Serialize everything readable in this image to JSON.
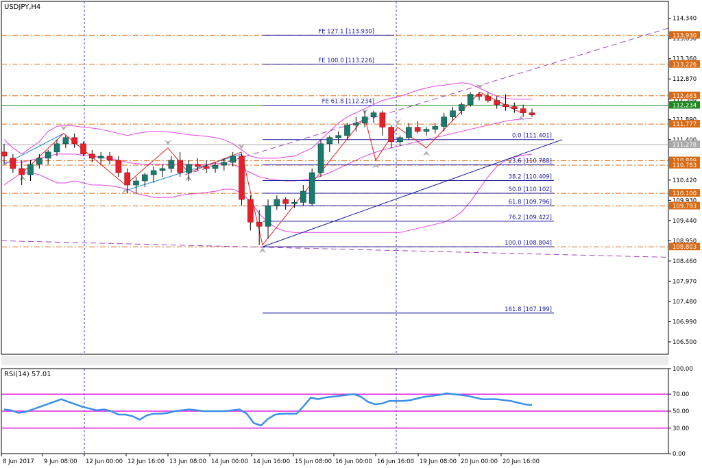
{
  "chart_data": [
    {
      "type": "candlestick",
      "title": "USDJPY,H4",
      "symbol": "USDJPY",
      "timeframe": "H4",
      "ylim": [
        106.2,
        114.75
      ],
      "y_ticks": [
        "114.340",
        "113.850",
        "113.360",
        "112.870",
        "112.380",
        "111.890",
        "111.400",
        "110.910",
        "110.420",
        "109.930",
        "109.440",
        "108.950",
        "108.460",
        "107.970",
        "107.480",
        "106.990",
        "106.500"
      ],
      "x_ticks": [
        "8 Jun 2017",
        "9 Jun 08:00",
        "12 Jun 00:00",
        "12 Jun 16:00",
        "13 Jun 08:00",
        "14 Jun 00:00",
        "14 Jun 16:00",
        "15 Jun 08:00",
        "16 Jun 00:00",
        "16 Jun 16:00",
        "19 Jun 08:00",
        "20 Jun 00:00",
        "20 Jun 16:00"
      ],
      "candles": [
        {
          "o": 111.1,
          "h": 111.3,
          "l": 110.8,
          "c": 111.0
        },
        {
          "o": 110.95,
          "h": 111.05,
          "l": 110.6,
          "c": 110.7
        },
        {
          "o": 110.7,
          "h": 110.9,
          "l": 110.3,
          "c": 110.55
        },
        {
          "o": 110.55,
          "h": 110.9,
          "l": 110.4,
          "c": 110.8
        },
        {
          "o": 110.8,
          "h": 111.05,
          "l": 110.7,
          "c": 110.95
        },
        {
          "o": 110.95,
          "h": 111.15,
          "l": 110.8,
          "c": 111.1
        },
        {
          "o": 111.1,
          "h": 111.4,
          "l": 111.0,
          "c": 111.3
        },
        {
          "o": 111.3,
          "h": 111.5,
          "l": 111.2,
          "c": 111.45
        },
        {
          "o": 111.45,
          "h": 111.55,
          "l": 111.2,
          "c": 111.3
        },
        {
          "o": 111.3,
          "h": 111.35,
          "l": 111.0,
          "c": 111.05
        },
        {
          "o": 111.05,
          "h": 111.15,
          "l": 110.85,
          "c": 110.95
        },
        {
          "o": 110.95,
          "h": 111.1,
          "l": 110.8,
          "c": 111.0
        },
        {
          "o": 111.0,
          "h": 111.1,
          "l": 110.8,
          "c": 110.9
        },
        {
          "o": 110.9,
          "h": 111.0,
          "l": 110.5,
          "c": 110.6
        },
        {
          "o": 110.6,
          "h": 110.7,
          "l": 110.1,
          "c": 110.3
        },
        {
          "o": 110.3,
          "h": 110.5,
          "l": 110.1,
          "c": 110.4
        },
        {
          "o": 110.4,
          "h": 110.6,
          "l": 110.25,
          "c": 110.55
        },
        {
          "o": 110.55,
          "h": 110.75,
          "l": 110.35,
          "c": 110.65
        },
        {
          "o": 110.65,
          "h": 110.8,
          "l": 110.5,
          "c": 110.7
        },
        {
          "o": 110.7,
          "h": 111.0,
          "l": 110.6,
          "c": 110.9
        },
        {
          "o": 110.9,
          "h": 111.1,
          "l": 110.5,
          "c": 110.6
        },
        {
          "o": 110.6,
          "h": 110.9,
          "l": 110.4,
          "c": 110.8
        },
        {
          "o": 110.8,
          "h": 110.95,
          "l": 110.65,
          "c": 110.75
        },
        {
          "o": 110.75,
          "h": 110.9,
          "l": 110.6,
          "c": 110.7
        },
        {
          "o": 110.7,
          "h": 110.85,
          "l": 110.6,
          "c": 110.78
        },
        {
          "o": 110.78,
          "h": 110.95,
          "l": 110.65,
          "c": 110.85
        },
        {
          "o": 110.85,
          "h": 111.1,
          "l": 110.75,
          "c": 111.0
        },
        {
          "o": 111.0,
          "h": 111.05,
          "l": 109.8,
          "c": 109.95
        },
        {
          "o": 109.95,
          "h": 110.05,
          "l": 109.2,
          "c": 109.4
        },
        {
          "o": 109.4,
          "h": 109.7,
          "l": 108.85,
          "c": 109.3
        },
        {
          "o": 109.3,
          "h": 109.95,
          "l": 109.0,
          "c": 109.8
        },
        {
          "o": 109.8,
          "h": 110.05,
          "l": 109.7,
          "c": 109.95
        },
        {
          "o": 109.95,
          "h": 110.0,
          "l": 109.7,
          "c": 109.85
        },
        {
          "o": 109.85,
          "h": 109.95,
          "l": 109.75,
          "c": 109.88
        },
        {
          "o": 109.88,
          "h": 110.3,
          "l": 109.8,
          "c": 110.15
        },
        {
          "o": 109.85,
          "h": 110.7,
          "l": 109.8,
          "c": 110.6
        },
        {
          "o": 110.6,
          "h": 111.4,
          "l": 110.5,
          "c": 111.3
        },
        {
          "o": 111.3,
          "h": 111.5,
          "l": 111.1,
          "c": 111.45
        },
        {
          "o": 111.45,
          "h": 111.6,
          "l": 111.3,
          "c": 111.5
        },
        {
          "o": 111.5,
          "h": 111.8,
          "l": 111.4,
          "c": 111.75
        },
        {
          "o": 111.75,
          "h": 111.95,
          "l": 111.6,
          "c": 111.8
        },
        {
          "o": 111.8,
          "h": 112.1,
          "l": 111.7,
          "c": 111.95
        },
        {
          "o": 111.95,
          "h": 112.1,
          "l": 111.8,
          "c": 112.05
        },
        {
          "o": 112.05,
          "h": 112.1,
          "l": 111.5,
          "c": 111.7
        },
        {
          "o": 111.7,
          "h": 111.75,
          "l": 111.2,
          "c": 111.35
        },
        {
          "o": 111.35,
          "h": 111.5,
          "l": 111.25,
          "c": 111.45
        },
        {
          "o": 111.45,
          "h": 111.8,
          "l": 111.4,
          "c": 111.7
        },
        {
          "o": 111.7,
          "h": 111.85,
          "l": 111.55,
          "c": 111.6
        },
        {
          "o": 111.6,
          "h": 111.7,
          "l": 111.5,
          "c": 111.65
        },
        {
          "o": 111.65,
          "h": 111.8,
          "l": 111.55,
          "c": 111.72
        },
        {
          "o": 111.72,
          "h": 112.05,
          "l": 111.6,
          "c": 111.95
        },
        {
          "o": 111.95,
          "h": 112.2,
          "l": 111.85,
          "c": 112.1
        },
        {
          "o": 112.1,
          "h": 112.3,
          "l": 112.0,
          "c": 112.25
        },
        {
          "o": 112.25,
          "h": 112.55,
          "l": 112.2,
          "c": 112.5
        },
        {
          "o": 112.5,
          "h": 112.55,
          "l": 112.35,
          "c": 112.45
        },
        {
          "o": 112.45,
          "h": 112.55,
          "l": 112.3,
          "c": 112.35
        },
        {
          "o": 112.35,
          "h": 112.45,
          "l": 112.15,
          "c": 112.25
        },
        {
          "o": 112.25,
          "h": 112.5,
          "l": 112.1,
          "c": 112.2
        },
        {
          "o": 112.2,
          "h": 112.3,
          "l": 112.05,
          "c": 112.15
        },
        {
          "o": 112.15,
          "h": 112.25,
          "l": 111.95,
          "c": 112.05
        },
        {
          "o": 112.05,
          "h": 112.15,
          "l": 111.95,
          "c": 112.0
        }
      ],
      "fibo_levels": [
        {
          "label": "0.0 [111.401]",
          "price": 111.401
        },
        {
          "label": "23.6 [110.788]",
          "price": 110.788
        },
        {
          "label": "38.2 [110.409]",
          "price": 110.409
        },
        {
          "label": "50.0 [110.102]",
          "price": 110.102
        },
        {
          "label": "61.8 [109.796]",
          "price": 109.796
        },
        {
          "label": "76.2 [109.422]",
          "price": 109.422
        },
        {
          "label": "100.0 [108.804]",
          "price": 108.804
        },
        {
          "label": "161.8 [107.199]",
          "price": 107.199
        }
      ],
      "fibo_expansion": [
        {
          "label": "FE 127.1 [113.930]",
          "price": 113.93
        },
        {
          "label": "FE 100.0 [113.226]",
          "price": 113.226
        },
        {
          "label": "FE 61.8 [112.234]",
          "price": 112.234
        }
      ],
      "price_labels": [
        {
          "text": "113.930",
          "price": 113.93,
          "color": "#d96a12"
        },
        {
          "text": "113.226",
          "price": 113.226,
          "color": "#d96a12"
        },
        {
          "text": "112.463",
          "price": 112.463,
          "color": "#d96a12"
        },
        {
          "text": "112.234",
          "price": 112.234,
          "color": "#1e8a1e"
        },
        {
          "text": "111.777",
          "price": 111.777,
          "color": "#d96a12"
        },
        {
          "text": "111.278",
          "price": 111.278,
          "color": "#a9a9a9"
        },
        {
          "text": "110.889",
          "price": 110.889,
          "color": "#d96a12"
        },
        {
          "text": "110.783",
          "price": 110.783,
          "color": "#d96a12"
        },
        {
          "text": "110.100",
          "price": 110.1,
          "color": "#d96a12"
        },
        {
          "text": "109.793",
          "price": 109.793,
          "color": "#d96a12"
        },
        {
          "text": "108.803",
          "price": 108.803,
          "color": "#d96a12"
        }
      ],
      "bollinger": {
        "upper": [
          111.4,
          111.2,
          111.05,
          111.2,
          111.35,
          111.6,
          111.72,
          111.75,
          111.73,
          111.7,
          111.68,
          111.65,
          111.6,
          111.55,
          111.5,
          111.55,
          111.58,
          111.6,
          111.6,
          111.58,
          111.55,
          111.52,
          111.5,
          111.48,
          111.45,
          111.4,
          111.3,
          111.15,
          111.0,
          110.95,
          110.95,
          110.95,
          110.98,
          111.0,
          111.1,
          111.2,
          111.4,
          111.6,
          111.8,
          111.95,
          112.05,
          112.15,
          112.25,
          112.35,
          112.4,
          112.45,
          112.52,
          112.6,
          112.65,
          112.7,
          112.72,
          112.75,
          112.78,
          112.75,
          112.65,
          112.55,
          112.45,
          112.4,
          112.38,
          112.38,
          112.38
        ],
        "middle": [
          110.85,
          110.85,
          110.85,
          110.9,
          110.95,
          111.0,
          111.05,
          111.05,
          111.05,
          111.02,
          111.0,
          110.97,
          110.94,
          110.9,
          110.85,
          110.82,
          110.8,
          110.8,
          110.8,
          110.8,
          110.8,
          110.8,
          110.8,
          110.8,
          110.82,
          110.82,
          110.8,
          110.7,
          110.6,
          110.5,
          110.45,
          110.42,
          110.4,
          110.4,
          110.42,
          110.45,
          110.52,
          110.6,
          110.7,
          110.8,
          110.9,
          111.0,
          111.08,
          111.15,
          111.2,
          111.25,
          111.3,
          111.35,
          111.4,
          111.45,
          111.5,
          111.55,
          111.6,
          111.65,
          111.7,
          111.75,
          111.8,
          111.85,
          111.88,
          111.9,
          111.92
        ],
        "lower": [
          110.3,
          110.45,
          110.6,
          110.6,
          110.55,
          110.45,
          110.35,
          110.35,
          110.4,
          110.35,
          110.3,
          110.3,
          110.28,
          110.25,
          110.2,
          110.1,
          110.05,
          110.0,
          110.0,
          110.0,
          110.05,
          110.08,
          110.1,
          110.12,
          110.15,
          110.2,
          110.2,
          110.1,
          109.9,
          109.6,
          109.4,
          109.25,
          109.18,
          109.15,
          109.15,
          109.15,
          109.15,
          109.15,
          109.15,
          109.15,
          109.15,
          109.15,
          109.15,
          109.15,
          109.15,
          109.15,
          109.2,
          109.25,
          109.3,
          109.35,
          109.4,
          109.5,
          109.65,
          109.9,
          110.2,
          110.5,
          110.75,
          110.9,
          110.98,
          111.02,
          111.05
        ]
      }
    },
    {
      "type": "line",
      "title": "RSI(14) 57.01",
      "ylim": [
        0,
        100
      ],
      "y_ticks": [
        "100.00",
        "70.00",
        "50.00",
        "30.00",
        "0.00"
      ],
      "levels": [
        70,
        50,
        30
      ],
      "series": [
        {
          "values": [
            52,
            51,
            48,
            49,
            52,
            55,
            58,
            61,
            64,
            61,
            58,
            55,
            53,
            51,
            52,
            50,
            46,
            46,
            44,
            40,
            45,
            47,
            47,
            48,
            50,
            51,
            52,
            51,
            50,
            50,
            50,
            50,
            51,
            52,
            47,
            36,
            33,
            41,
            46,
            47,
            47,
            47,
            56,
            66,
            64,
            66,
            67,
            68,
            69,
            70,
            67,
            61,
            58,
            59,
            62,
            62,
            62,
            63,
            65,
            67,
            68,
            69,
            71,
            70,
            69,
            68,
            66,
            64,
            64,
            64,
            63,
            62,
            60,
            58,
            57
          ]
        }
      ]
    }
  ]
}
